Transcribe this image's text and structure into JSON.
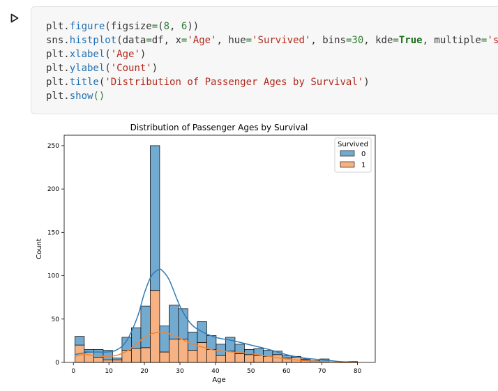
{
  "cell": {
    "run_icon": "play-icon",
    "code_lines": [
      [
        [
          "plt.",
          ""
        ],
        [
          "figure",
          "fn"
        ],
        [
          "(figsize",
          ""
        ],
        [
          "=",
          "eq"
        ],
        [
          "(",
          ""
        ],
        [
          "8",
          "num"
        ],
        [
          ", ",
          ""
        ],
        [
          "6",
          "num"
        ],
        [
          "))",
          ""
        ]
      ],
      [
        [
          "sns.",
          ""
        ],
        [
          "histplot",
          "fn"
        ],
        [
          "(data",
          ""
        ],
        [
          "=",
          "eq"
        ],
        [
          "df, x",
          ""
        ],
        [
          "=",
          "eq"
        ],
        [
          "'Age'",
          "str"
        ],
        [
          ", hue",
          ""
        ],
        [
          "=",
          "eq"
        ],
        [
          "'Survived'",
          "str"
        ],
        [
          ", bins",
          ""
        ],
        [
          "=",
          "eq"
        ],
        [
          "30",
          "num"
        ],
        [
          ", kde",
          ""
        ],
        [
          "=",
          "eq"
        ],
        [
          "True",
          "kw"
        ],
        [
          ", multiple",
          ""
        ],
        [
          "=",
          "eq"
        ],
        [
          "'stack'",
          "str"
        ],
        [
          ")",
          ""
        ]
      ],
      [
        [
          "plt.",
          ""
        ],
        [
          "xlabel",
          "fn"
        ],
        [
          "(",
          ""
        ],
        [
          "'Age'",
          "str"
        ],
        [
          ")",
          ""
        ]
      ],
      [
        [
          "plt.",
          ""
        ],
        [
          "ylabel",
          "fn"
        ],
        [
          "(",
          ""
        ],
        [
          "'Count'",
          "str"
        ],
        [
          ")",
          ""
        ]
      ],
      [
        [
          "plt.",
          ""
        ],
        [
          "title",
          "fn"
        ],
        [
          "(",
          ""
        ],
        [
          "'Distribution of Passenger Ages by Survival'",
          "str"
        ],
        [
          ")",
          ""
        ]
      ],
      [
        [
          "plt.",
          ""
        ],
        [
          "show",
          "fn"
        ],
        [
          "()",
          "paren-green"
        ]
      ]
    ]
  },
  "chart_data": {
    "type": "bar",
    "title": "Distribution of Passenger Ages by Survival",
    "xlabel": "Age",
    "ylabel": "Count",
    "xlim": [
      -2.6,
      85
    ],
    "ylim": [
      0,
      262
    ],
    "xticks": [
      0,
      10,
      20,
      30,
      40,
      50,
      60,
      70,
      80
    ],
    "yticks": [
      0,
      50,
      100,
      150,
      200,
      250
    ],
    "legend_title": "Survived",
    "legend_position": "top-right",
    "bin_edges": [
      0.42,
      3.07,
      5.72,
      8.38,
      11.03,
      13.68,
      16.33,
      18.99,
      21.64,
      24.29,
      26.94,
      29.59,
      32.25,
      34.9,
      37.55,
      40.2,
      42.85,
      45.51,
      48.16,
      50.81,
      53.46,
      56.11,
      58.77,
      61.42,
      64.07,
      66.72,
      69.37,
      72.03,
      74.68,
      77.33,
      80.0
    ],
    "series": [
      {
        "name": "0",
        "color": "#5b9bc8",
        "values": [
          10,
          3,
          9,
          11,
          2,
          15,
          24,
          48,
          167,
          30,
          39,
          35,
          21,
          24,
          16,
          13,
          16,
          11,
          6,
          8,
          7,
          4,
          3,
          1,
          1,
          0,
          4,
          0,
          0,
          0
        ]
      },
      {
        "name": "1",
        "color": "#f4a46c",
        "values": [
          20,
          12,
          6,
          3,
          3,
          14,
          16,
          17,
          83,
          12,
          27,
          27,
          14,
          23,
          15,
          8,
          13,
          10,
          9,
          8,
          7,
          9,
          5,
          6,
          3,
          2,
          0,
          0,
          0,
          1
        ]
      }
    ],
    "kde": [
      {
        "name": "0",
        "color": "#2f7bb6",
        "x": [
          0.4,
          3,
          6,
          9,
          12,
          15,
          18,
          20,
          22,
          24,
          25,
          27,
          30,
          33,
          36,
          40,
          45,
          50,
          55,
          60,
          65,
          70,
          75,
          80
        ],
        "y": [
          9,
          11,
          12,
          12,
          14,
          25,
          52,
          80,
          100,
          107,
          106,
          95,
          65,
          45,
          36,
          29,
          25,
          20,
          15,
          9,
          5,
          3,
          1,
          0
        ]
      },
      {
        "name": "1",
        "color": "#ef8636",
        "x": [
          0.4,
          3,
          6,
          9,
          12,
          15,
          18,
          20,
          22,
          24,
          25,
          27,
          30,
          33,
          36,
          40,
          45,
          50,
          55,
          60,
          65,
          70,
          75,
          80
        ],
        "y": [
          7,
          9,
          8,
          7,
          8,
          13,
          22,
          29,
          33,
          35,
          35,
          33,
          28,
          22,
          18,
          14,
          12,
          10,
          7,
          4,
          2,
          1,
          0,
          0
        ]
      }
    ]
  }
}
